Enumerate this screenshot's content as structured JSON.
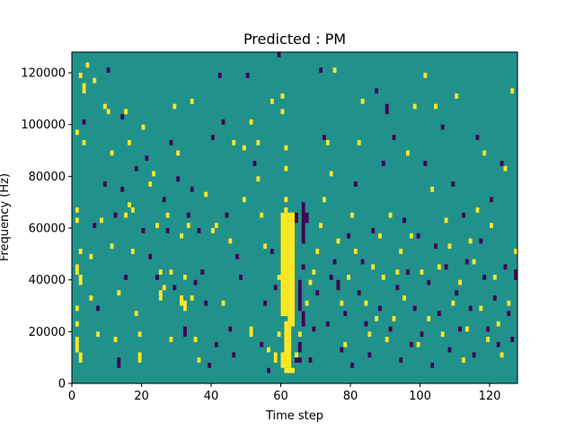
{
  "chart_data": {
    "type": "heatmap",
    "title": "Predicted : PM",
    "xlabel": "Time step",
    "ylabel": "Frequency (Hz)",
    "xlim": [
      0,
      128
    ],
    "ylim": [
      0,
      128000
    ],
    "x_ticks": [
      0,
      20,
      40,
      60,
      80,
      100,
      120
    ],
    "y_ticks": [
      0,
      20000,
      40000,
      60000,
      80000,
      100000,
      120000
    ],
    "grid": false,
    "legend": "none",
    "colors": {
      "background": "#21918c",
      "high": "#fde725",
      "low": "#440154"
    },
    "bin_height_hz": 2000,
    "high_cells": [
      [
        1,
        66000,
        2000
      ],
      [
        1,
        62000,
        2000
      ],
      [
        1,
        42000,
        4000
      ],
      [
        1,
        28000,
        2000
      ],
      [
        1,
        22000,
        2000
      ],
      [
        1,
        96000,
        2000
      ],
      [
        1,
        12000,
        6000
      ],
      [
        2,
        118000,
        2000
      ],
      [
        2,
        50000,
        2000
      ],
      [
        2,
        38000,
        4000
      ],
      [
        2,
        8000,
        4000
      ],
      [
        3,
        112000,
        4000
      ],
      [
        3,
        92000,
        2000
      ],
      [
        4,
        122000,
        2000
      ],
      [
        5,
        48000,
        2000
      ],
      [
        5,
        32000,
        2000
      ],
      [
        6,
        116000,
        2000
      ],
      [
        7,
        18000,
        2000
      ],
      [
        8,
        62000,
        2000
      ],
      [
        9,
        106000,
        2000
      ],
      [
        10,
        104000,
        2000
      ],
      [
        11,
        88000,
        2000
      ],
      [
        11,
        52000,
        2000
      ],
      [
        12,
        16000,
        2000
      ],
      [
        13,
        34000,
        2000
      ],
      [
        15,
        104000,
        2000
      ],
      [
        15,
        64000,
        2000
      ],
      [
        16,
        68000,
        2000
      ],
      [
        17,
        66000,
        2000
      ],
      [
        16,
        92000,
        2000
      ],
      [
        17,
        50000,
        2000
      ],
      [
        18,
        26000,
        2000
      ],
      [
        19,
        18000,
        2000
      ],
      [
        19,
        8000,
        4000
      ],
      [
        20,
        98000,
        2000
      ],
      [
        22,
        76000,
        2000
      ],
      [
        23,
        80000,
        2000
      ],
      [
        24,
        60000,
        2000
      ],
      [
        25,
        42000,
        2000
      ],
      [
        25,
        32000,
        4000
      ],
      [
        26,
        36000,
        2000
      ],
      [
        27,
        64000,
        2000
      ],
      [
        28,
        42000,
        2000
      ],
      [
        28,
        16000,
        2000
      ],
      [
        29,
        106000,
        2000
      ],
      [
        30,
        88000,
        2000
      ],
      [
        31,
        56000,
        2000
      ],
      [
        31,
        30000,
        4000
      ],
      [
        32,
        40000,
        2000
      ],
      [
        32,
        28000,
        4000
      ],
      [
        33,
        60000,
        2000
      ],
      [
        34,
        108000,
        2000
      ],
      [
        34,
        32000,
        2000
      ],
      [
        35,
        16000,
        2000
      ],
      [
        36,
        8000,
        2000
      ],
      [
        38,
        72000,
        2000
      ],
      [
        40,
        58000,
        2000
      ],
      [
        41,
        60000,
        2000
      ],
      [
        43,
        30000,
        2000
      ],
      [
        45,
        54000,
        2000
      ],
      [
        46,
        92000,
        2000
      ],
      [
        49,
        90000,
        2000
      ],
      [
        49,
        70000,
        2000
      ],
      [
        51,
        100000,
        2000
      ],
      [
        51,
        18000,
        4000
      ],
      [
        53,
        92000,
        2000
      ],
      [
        53,
        78000,
        2000
      ],
      [
        54,
        64000,
        2000
      ],
      [
        55,
        52000,
        2000
      ],
      [
        56,
        12000,
        2000
      ],
      [
        57,
        108000,
        2000
      ],
      [
        58,
        8000,
        4000
      ],
      [
        59,
        18000,
        2000
      ],
      [
        59,
        40000,
        2000
      ],
      [
        60,
        104000,
        2000
      ],
      [
        60,
        110000,
        2000
      ],
      [
        61,
        90000,
        2000
      ],
      [
        61,
        82000,
        2000
      ],
      [
        61,
        70000,
        2000
      ],
      [
        61,
        66000,
        2000
      ],
      [
        62,
        6000,
        4000
      ],
      [
        64,
        10000,
        2000
      ],
      [
        65,
        18000,
        2000
      ],
      [
        66,
        26000,
        2000
      ],
      [
        67,
        30000,
        2000
      ],
      [
        68,
        38000,
        2000
      ],
      [
        69,
        42000,
        2000
      ],
      [
        70,
        50000,
        2000
      ],
      [
        71,
        60000,
        2000
      ],
      [
        72,
        70000,
        2000
      ],
      [
        73,
        92000,
        2000
      ],
      [
        74,
        80000,
        2000
      ],
      [
        75,
        120000,
        2000
      ],
      [
        76,
        54000,
        2000
      ],
      [
        77,
        30000,
        2000
      ],
      [
        78,
        14000,
        2000
      ],
      [
        79,
        40000,
        2000
      ],
      [
        80,
        64000,
        2000
      ],
      [
        81,
        50000,
        2000
      ],
      [
        82,
        92000,
        2000
      ],
      [
        83,
        108000,
        2000
      ],
      [
        84,
        30000,
        2000
      ],
      [
        85,
        18000,
        2000
      ],
      [
        86,
        44000,
        2000
      ],
      [
        87,
        24000,
        2000
      ],
      [
        88,
        56000,
        2000
      ],
      [
        89,
        40000,
        2000
      ],
      [
        90,
        16000,
        2000
      ],
      [
        91,
        64000,
        2000
      ],
      [
        92,
        24000,
        2000
      ],
      [
        93,
        42000,
        2000
      ],
      [
        94,
        50000,
        2000
      ],
      [
        95,
        32000,
        2000
      ],
      [
        96,
        88000,
        2000
      ],
      [
        97,
        56000,
        2000
      ],
      [
        98,
        106000,
        2000
      ],
      [
        99,
        14000,
        2000
      ],
      [
        100,
        42000,
        2000
      ],
      [
        101,
        118000,
        2000
      ],
      [
        102,
        24000,
        2000
      ],
      [
        103,
        74000,
        2000
      ],
      [
        104,
        106000,
        2000
      ],
      [
        105,
        44000,
        2000
      ],
      [
        106,
        18000,
        2000
      ],
      [
        107,
        62000,
        2000
      ],
      [
        108,
        52000,
        2000
      ],
      [
        109,
        30000,
        2000
      ],
      [
        110,
        110000,
        2000
      ],
      [
        111,
        38000,
        2000
      ],
      [
        112,
        8000,
        2000
      ],
      [
        113,
        20000,
        2000
      ],
      [
        114,
        54000,
        2000
      ],
      [
        115,
        46000,
        2000
      ],
      [
        116,
        66000,
        2000
      ],
      [
        117,
        28000,
        2000
      ],
      [
        118,
        88000,
        2000
      ],
      [
        119,
        16000,
        2000
      ],
      [
        120,
        60000,
        2000
      ],
      [
        121,
        40000,
        2000
      ],
      [
        122,
        22000,
        2000
      ],
      [
        123,
        10000,
        2000
      ],
      [
        124,
        82000,
        2000
      ],
      [
        125,
        30000,
        2000
      ],
      [
        126,
        112000,
        2000
      ],
      [
        127,
        50000,
        2000
      ]
    ],
    "low_cells": [
      [
        3,
        100000,
        2000
      ],
      [
        6,
        60000,
        2000
      ],
      [
        7,
        28000,
        2000
      ],
      [
        9,
        76000,
        2000
      ],
      [
        10,
        120000,
        2000
      ],
      [
        12,
        64000,
        2000
      ],
      [
        13,
        6000,
        4000
      ],
      [
        14,
        74000,
        2000
      ],
      [
        14,
        102000,
        2000
      ],
      [
        15,
        40000,
        2000
      ],
      [
        18,
        82000,
        2000
      ],
      [
        20,
        58000,
        2000
      ],
      [
        21,
        86000,
        2000
      ],
      [
        22,
        48000,
        2000
      ],
      [
        24,
        40000,
        2000
      ],
      [
        26,
        70000,
        2000
      ],
      [
        27,
        58000,
        2000
      ],
      [
        28,
        92000,
        2000
      ],
      [
        29,
        36000,
        2000
      ],
      [
        30,
        78000,
        2000
      ],
      [
        32,
        18000,
        4000
      ],
      [
        33,
        64000,
        2000
      ],
      [
        34,
        74000,
        2000
      ],
      [
        35,
        38000,
        2000
      ],
      [
        36,
        58000,
        2000
      ],
      [
        37,
        42000,
        2000
      ],
      [
        38,
        30000,
        2000
      ],
      [
        39,
        6000,
        2000
      ],
      [
        40,
        94000,
        2000
      ],
      [
        41,
        14000,
        2000
      ],
      [
        42,
        118000,
        2000
      ],
      [
        43,
        100000,
        2000
      ],
      [
        44,
        64000,
        2000
      ],
      [
        45,
        20000,
        2000
      ],
      [
        46,
        10000,
        2000
      ],
      [
        47,
        48000,
        2000
      ],
      [
        48,
        40000,
        2000
      ],
      [
        50,
        118000,
        2000
      ],
      [
        52,
        84000,
        2000
      ],
      [
        54,
        14000,
        2000
      ],
      [
        55,
        30000,
        2000
      ],
      [
        56,
        4000,
        2000
      ],
      [
        57,
        50000,
        2000
      ],
      [
        58,
        36000,
        2000
      ],
      [
        59,
        126000,
        2000
      ],
      [
        63,
        48000,
        2000
      ],
      [
        64,
        62000,
        4000
      ],
      [
        65,
        12000,
        4000
      ],
      [
        66,
        44000,
        2000
      ],
      [
        67,
        62000,
        4000
      ],
      [
        68,
        8000,
        2000
      ],
      [
        69,
        20000,
        2000
      ],
      [
        70,
        34000,
        2000
      ],
      [
        71,
        120000,
        2000
      ],
      [
        72,
        94000,
        2000
      ],
      [
        73,
        22000,
        2000
      ],
      [
        74,
        40000,
        2000
      ],
      [
        75,
        46000,
        2000
      ],
      [
        76,
        36000,
        4000
      ],
      [
        77,
        12000,
        2000
      ],
      [
        78,
        26000,
        2000
      ],
      [
        79,
        56000,
        2000
      ],
      [
        80,
        6000,
        2000
      ],
      [
        81,
        76000,
        2000
      ],
      [
        82,
        34000,
        2000
      ],
      [
        83,
        46000,
        2000
      ],
      [
        84,
        22000,
        2000
      ],
      [
        85,
        10000,
        2000
      ],
      [
        86,
        58000,
        2000
      ],
      [
        87,
        112000,
        2000
      ],
      [
        88,
        28000,
        2000
      ],
      [
        89,
        84000,
        2000
      ],
      [
        90,
        104000,
        4000
      ],
      [
        91,
        20000,
        2000
      ],
      [
        92,
        94000,
        2000
      ],
      [
        93,
        36000,
        2000
      ],
      [
        94,
        8000,
        2000
      ],
      [
        95,
        62000,
        2000
      ],
      [
        96,
        42000,
        2000
      ],
      [
        97,
        14000,
        2000
      ],
      [
        98,
        28000,
        2000
      ],
      [
        99,
        56000,
        2000
      ],
      [
        100,
        18000,
        2000
      ],
      [
        101,
        84000,
        2000
      ],
      [
        102,
        38000,
        2000
      ],
      [
        103,
        6000,
        2000
      ],
      [
        104,
        52000,
        2000
      ],
      [
        105,
        26000,
        2000
      ],
      [
        106,
        98000,
        2000
      ],
      [
        107,
        44000,
        2000
      ],
      [
        108,
        12000,
        2000
      ],
      [
        109,
        76000,
        2000
      ],
      [
        110,
        34000,
        2000
      ],
      [
        111,
        20000,
        2000
      ],
      [
        112,
        64000,
        2000
      ],
      [
        113,
        46000,
        2000
      ],
      [
        114,
        28000,
        2000
      ],
      [
        115,
        10000,
        2000
      ],
      [
        116,
        94000,
        2000
      ],
      [
        117,
        54000,
        2000
      ],
      [
        118,
        40000,
        2000
      ],
      [
        119,
        20000,
        2000
      ],
      [
        120,
        70000,
        2000
      ],
      [
        121,
        32000,
        2000
      ],
      [
        122,
        14000,
        2000
      ],
      [
        123,
        84000,
        2000
      ],
      [
        124,
        44000,
        2000
      ],
      [
        125,
        26000,
        2000
      ],
      [
        126,
        16000,
        2000
      ],
      [
        127,
        40000,
        4000
      ]
    ],
    "high_blocks": [
      [
        60,
        6000,
        2,
        6000
      ],
      [
        60,
        26000,
        2,
        40000
      ],
      [
        61,
        4000,
        3,
        2000
      ],
      [
        61,
        8000,
        2,
        16000
      ],
      [
        62,
        22000,
        2,
        44000
      ]
    ],
    "low_blocks": [
      [
        66,
        22000,
        1,
        6000
      ],
      [
        66,
        54000,
        1,
        16000
      ],
      [
        65,
        28000,
        1,
        12000
      ],
      [
        64,
        8000,
        2,
        2000
      ]
    ]
  }
}
